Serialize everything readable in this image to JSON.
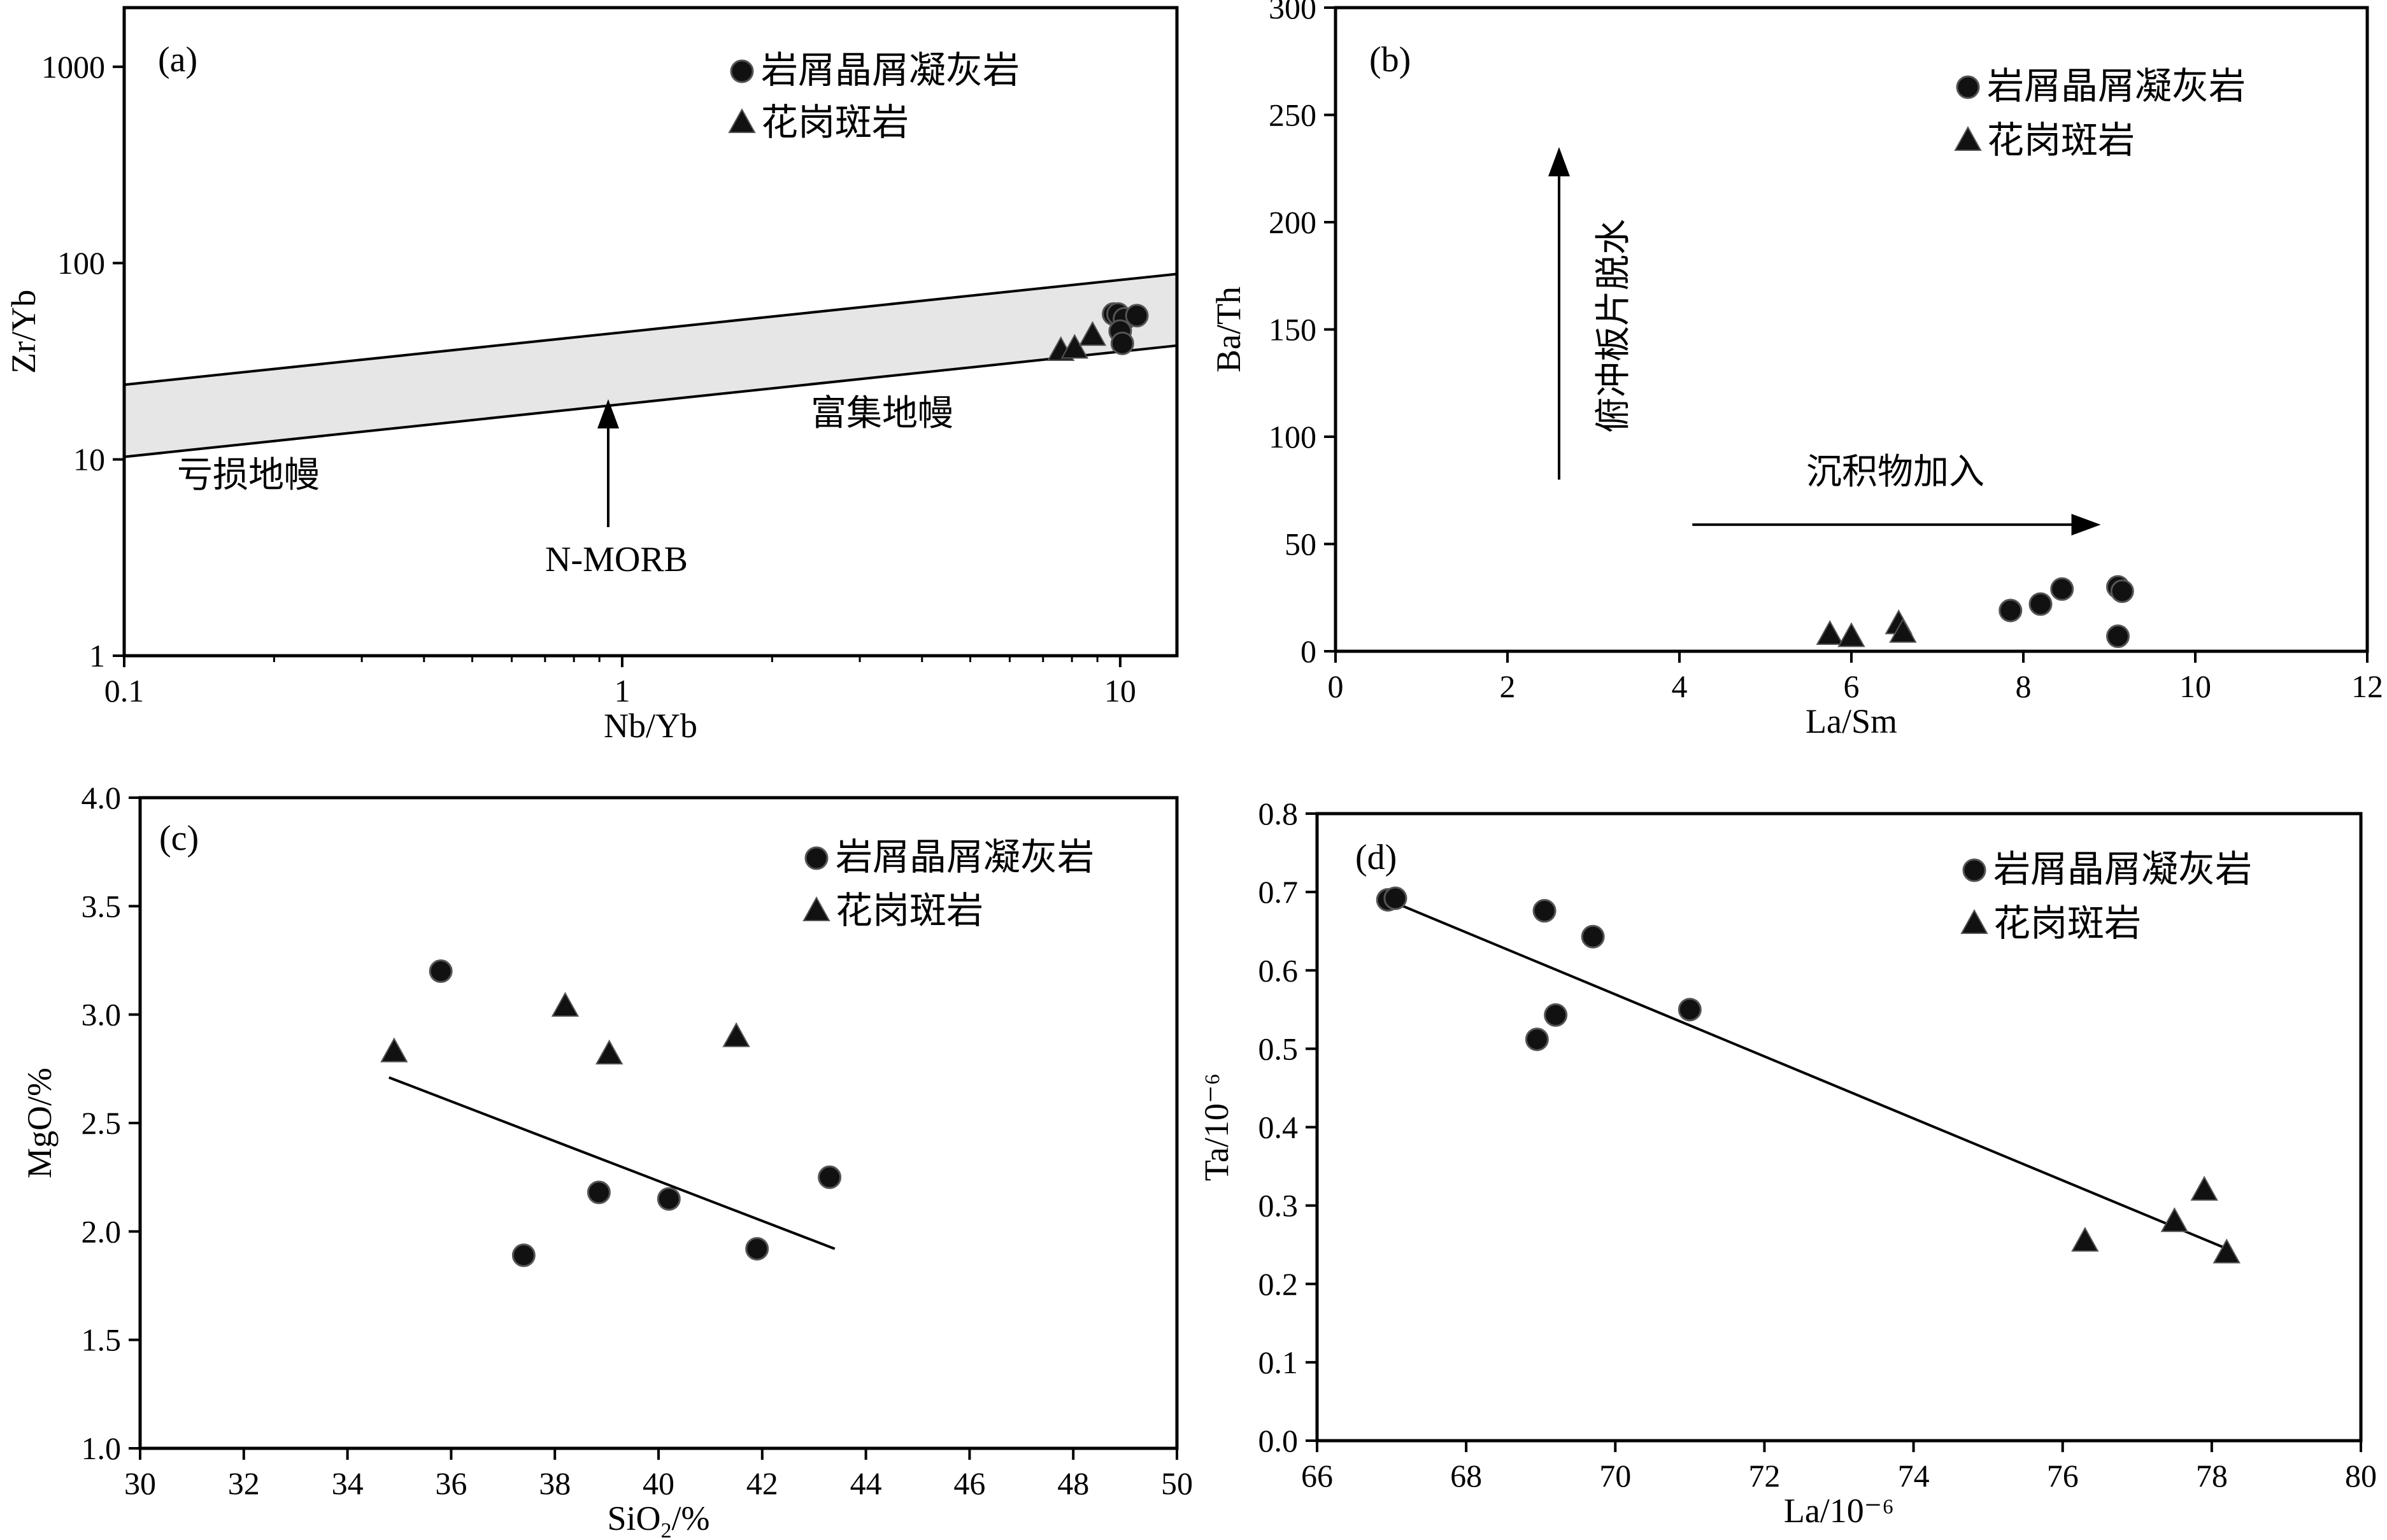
{
  "chart_data": [
    {
      "panel": "(a)",
      "type": "scatter",
      "xlabel": "Nb/Yb",
      "ylabel": "Zr/Yb",
      "xscale": "log",
      "yscale": "log",
      "xlim": [
        0.1,
        13
      ],
      "ylim": [
        1,
        2000
      ],
      "xticks": [
        0.1,
        1,
        10
      ],
      "xtick_labels": [
        "0.1",
        "1",
        "10"
      ],
      "yticks": [
        1,
        10,
        100,
        1000
      ],
      "ytick_labels": [
        "1",
        "10",
        "100",
        "1000"
      ],
      "grid": false,
      "legend_position": "top-right",
      "legend": [
        "岩屑晶屑凝灰岩",
        "花岗斑岩"
      ],
      "series": [
        {
          "name": "岩屑晶屑凝灰岩",
          "marker": "circle",
          "x": [
            9.7,
            9.9,
            10.2,
            10.8,
            10.0,
            10.1
          ],
          "y": [
            55,
            55,
            52,
            54,
            45,
            39
          ]
        },
        {
          "name": "花岗斑岩",
          "marker": "triangle",
          "x": [
            7.6,
            8.1,
            8.8
          ],
          "y": [
            36,
            37,
            43
          ]
        }
      ],
      "band": {
        "upper": [
          [
            0.1,
            24
          ],
          [
            13,
            88
          ]
        ],
        "lower": [
          [
            0.1,
            10.3
          ],
          [
            13,
            38
          ]
        ]
      },
      "annotations": [
        {
          "text": "亏损地幔",
          "x": 0.2,
          "y": 5.8
        },
        {
          "text": "富集地幔",
          "x": 4.2,
          "y": 15.5
        },
        {
          "text": "N-MORB",
          "x": 1.0,
          "y": 1.9
        }
      ],
      "arrow": {
        "from": [
          0.95,
          4.7
        ],
        "to": [
          0.95,
          17
        ]
      }
    },
    {
      "panel": "(b)",
      "type": "scatter",
      "xlabel": "La/Sm",
      "ylabel": "Ba/Th",
      "xlim": [
        0,
        12
      ],
      "ylim": [
        0,
        300
      ],
      "xticks": [
        0,
        2,
        4,
        6,
        8,
        10,
        12
      ],
      "yticks": [
        0,
        50,
        100,
        150,
        200,
        250,
        300
      ],
      "grid": false,
      "legend_position": "top-right",
      "legend": [
        "岩屑晶屑凝灰岩",
        "花岗斑岩"
      ],
      "series": [
        {
          "name": "岩屑晶屑凝灰岩",
          "marker": "circle",
          "x": [
            7.85,
            8.2,
            8.45,
            9.1,
            9.15,
            9.1
          ],
          "y": [
            19,
            22,
            29,
            30,
            28,
            7
          ]
        },
        {
          "name": "花岗斑岩",
          "marker": "triangle",
          "x": [
            5.75,
            6.0,
            6.55,
            6.6
          ],
          "y": [
            8,
            7,
            13,
            9
          ]
        }
      ],
      "annotations": [
        {
          "text": "俯冲板片脱水",
          "x": 3.0,
          "y": 183,
          "vertical": true
        },
        {
          "text": "沉积物加入",
          "x": 6.55,
          "y": 80
        }
      ],
      "arrows": [
        {
          "from": [
            2.6,
            80
          ],
          "to": [
            2.6,
            235
          ]
        },
        {
          "from": [
            4.15,
            59
          ],
          "to": [
            8.9,
            59
          ]
        }
      ]
    },
    {
      "panel": "(c)",
      "type": "scatter",
      "xlabel": "SiO2/%",
      "ylabel": "MgO/%",
      "xlim": [
        30,
        50
      ],
      "ylim": [
        1.0,
        4.0
      ],
      "xticks": [
        30,
        32,
        34,
        36,
        38,
        40,
        42,
        44,
        46,
        48,
        50
      ],
      "yticks": [
        1.0,
        1.5,
        2.0,
        2.5,
        3.0,
        3.5,
        4.0
      ],
      "ytick_labels": [
        "1.0",
        "1.5",
        "2.0",
        "2.5",
        "3.0",
        "3.5",
        "4.0"
      ],
      "grid": false,
      "legend_position": "top-right",
      "legend": [
        "岩屑晶屑凝灰岩",
        "花岗斑岩"
      ],
      "series": [
        {
          "name": "岩屑晶屑凝灰岩",
          "marker": "circle",
          "x": [
            35.8,
            37.4,
            38.85,
            40.2,
            41.9,
            43.3
          ],
          "y": [
            3.2,
            1.89,
            2.18,
            2.15,
            1.92,
            2.25
          ]
        },
        {
          "name": "花岗斑岩",
          "marker": "triangle",
          "x": [
            34.9,
            38.2,
            39.05,
            41.5
          ],
          "y": [
            2.83,
            3.04,
            2.82,
            2.9
          ]
        }
      ],
      "trendline": {
        "from": [
          34.8,
          2.71
        ],
        "to": [
          43.4,
          1.92
        ]
      }
    },
    {
      "panel": "(d)",
      "type": "scatter",
      "xlabel": "La/10⁻⁶",
      "ylabel": "Ta/10⁻⁶",
      "xlim": [
        66,
        80
      ],
      "ylim": [
        0.0,
        0.8
      ],
      "xticks": [
        66,
        68,
        70,
        72,
        74,
        76,
        78,
        80
      ],
      "yticks": [
        0.0,
        0.1,
        0.2,
        0.3,
        0.4,
        0.5,
        0.6,
        0.7,
        0.8
      ],
      "ytick_labels": [
        "0.0",
        "0.1",
        "0.2",
        "0.3",
        "0.4",
        "0.5",
        "0.6",
        "0.7",
        "0.8"
      ],
      "grid": false,
      "legend_position": "top-right",
      "legend": [
        "岩屑晶屑凝灰岩",
        "花岗斑岩"
      ],
      "series": [
        {
          "name": "岩屑晶屑凝灰岩",
          "marker": "circle",
          "x": [
            66.95,
            67.05,
            68.95,
            69.05,
            69.2,
            69.7,
            71.0
          ],
          "y": [
            0.69,
            0.692,
            0.512,
            0.676,
            0.543,
            0.643,
            0.55
          ]
        },
        {
          "name": "花岗斑岩",
          "marker": "triangle",
          "x": [
            76.3,
            77.5,
            77.9,
            78.2
          ],
          "y": [
            0.255,
            0.28,
            0.32,
            0.24
          ]
        }
      ],
      "trendline": {
        "from": [
          66.95,
          0.69
        ],
        "to": [
          78.2,
          0.245
        ]
      }
    }
  ]
}
